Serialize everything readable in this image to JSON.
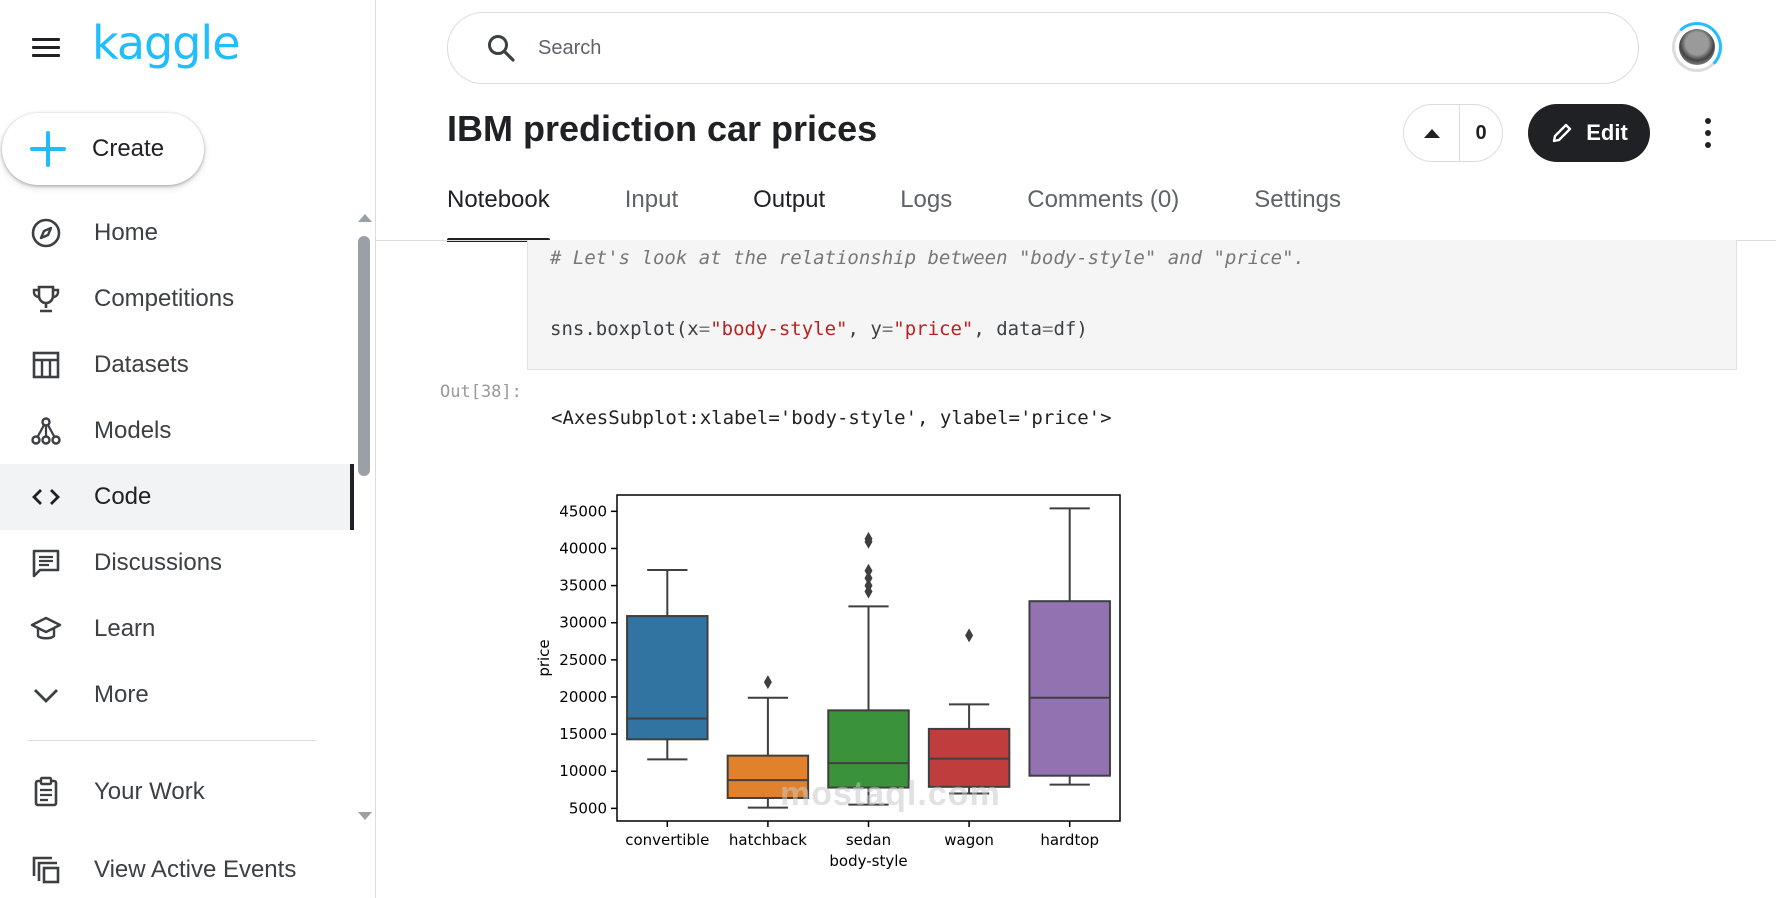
{
  "brand": {
    "logo": "kaggle",
    "accent": "#20beff"
  },
  "sidebar": {
    "create_label": "Create",
    "items": [
      {
        "label": "Home",
        "icon": "compass-icon"
      },
      {
        "label": "Competitions",
        "icon": "trophy-icon"
      },
      {
        "label": "Datasets",
        "icon": "table-icon"
      },
      {
        "label": "Models",
        "icon": "models-icon"
      },
      {
        "label": "Code",
        "icon": "code-icon",
        "active": true
      },
      {
        "label": "Discussions",
        "icon": "discussion-icon"
      },
      {
        "label": "Learn",
        "icon": "graduation-cap-icon"
      },
      {
        "label": "More",
        "icon": "chevron-down-icon"
      }
    ],
    "bottom_items": [
      {
        "label": "Your Work",
        "icon": "clipboard-icon"
      },
      {
        "label": "View Active Events",
        "icon": "copy-icon"
      }
    ]
  },
  "header": {
    "search_placeholder": "Search"
  },
  "notebook": {
    "title": "IBM prediction car prices",
    "vote_count": "0",
    "edit_label": "Edit",
    "tabs": [
      "Notebook",
      "Input",
      "Output",
      "Logs",
      "Comments (0)",
      "Settings"
    ],
    "active_tab": "Notebook"
  },
  "cell": {
    "comment": "# Let's look at the relationship between \"body-style\" and \"price\".",
    "code": {
      "fn": "sns.boxplot(",
      "x_kw": "x",
      "x_val": "\"body-style\"",
      "y_kw": "y",
      "y_val": "\"price\"",
      "data_kw": "data",
      "data_val": "df"
    },
    "out_prompt": "Out[38]:",
    "out_text": "<AxesSubplot:xlabel='body-style', ylabel='price'>"
  },
  "chart_data": {
    "type": "box",
    "xlabel": "body-style",
    "ylabel": "price",
    "ylim": [
      3300,
      47200
    ],
    "yticks": [
      5000,
      10000,
      15000,
      20000,
      25000,
      30000,
      35000,
      40000,
      45000
    ],
    "categories": [
      "convertible",
      "hatchback",
      "sedan",
      "wagon",
      "hardtop"
    ],
    "boxes": [
      {
        "name": "convertible",
        "color": "#3274a1",
        "whisker_low": 11600,
        "q1": 14300,
        "median": 17100,
        "q3": 30900,
        "whisker_high": 37100,
        "outliers": []
      },
      {
        "name": "hatchback",
        "color": "#e1812c",
        "whisker_low": 5100,
        "q1": 6400,
        "median": 8800,
        "q3": 12100,
        "whisker_high": 19900,
        "outliers": [
          22000
        ]
      },
      {
        "name": "sedan",
        "color": "#3a923a",
        "whisker_low": 5500,
        "q1": 7800,
        "median": 11100,
        "q3": 18200,
        "whisker_high": 32200,
        "outliers": [
          34200,
          35000,
          36000,
          37000,
          40900,
          41300
        ]
      },
      {
        "name": "wagon",
        "color": "#c03d3e",
        "whisker_low": 7000,
        "q1": 7900,
        "median": 11700,
        "q3": 15700,
        "whisker_high": 19000,
        "outliers": [
          28300
        ]
      },
      {
        "name": "hardtop",
        "color": "#9372b2",
        "whisker_low": 8200,
        "q1": 9400,
        "median": 19900,
        "q3": 32900,
        "whisker_high": 45400,
        "outliers": []
      }
    ]
  },
  "watermark": "mostaql.com"
}
